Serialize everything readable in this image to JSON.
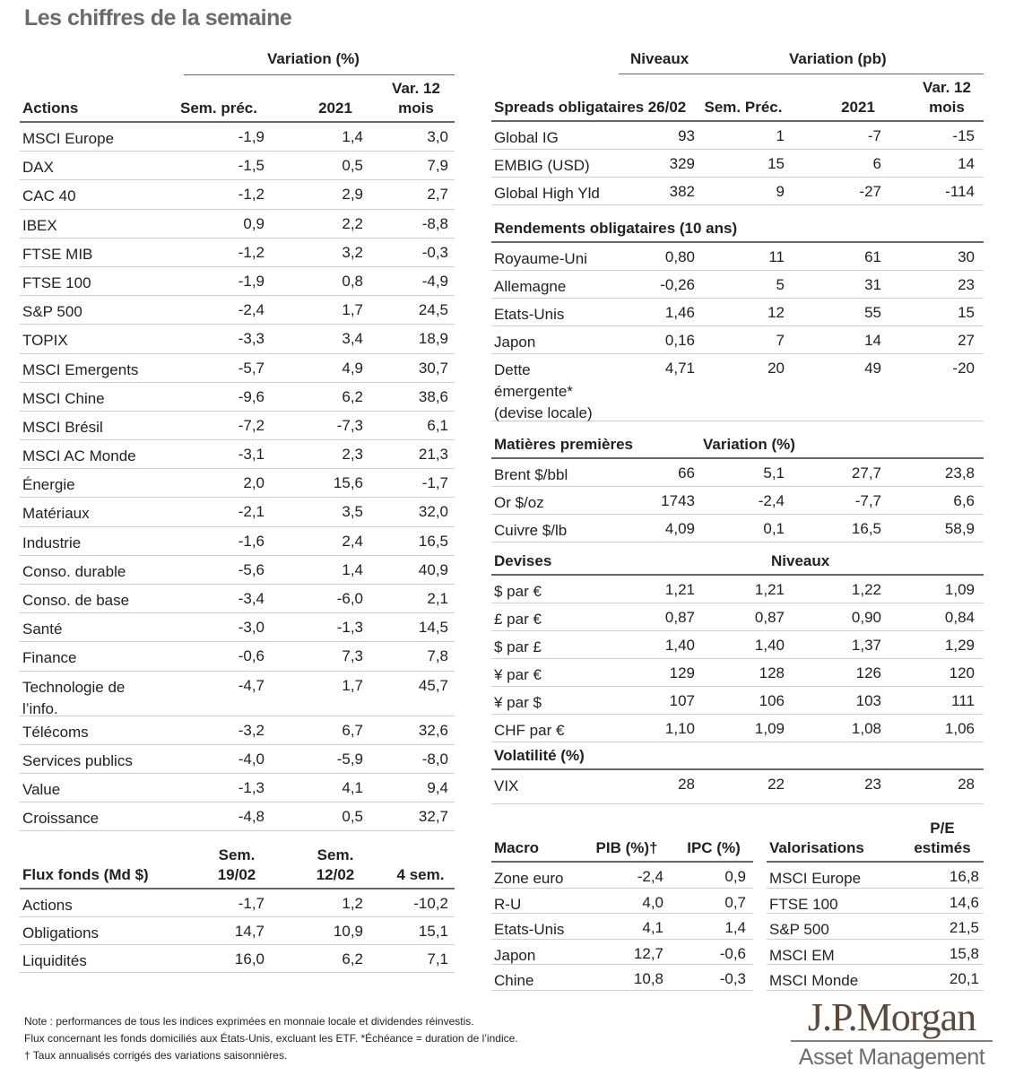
{
  "title": "Les chiffres de la semaine",
  "actions": {
    "group_header": "Variation (%)",
    "title": "Actions",
    "columns": [
      "Sem. préc.",
      "2021",
      "Var. 12 mois"
    ],
    "rows": [
      {
        "label": "MSCI Europe",
        "values": [
          "-1,9",
          "1,4",
          "3,0"
        ]
      },
      {
        "label": "DAX",
        "values": [
          "-1,5",
          "0,5",
          "7,9"
        ]
      },
      {
        "label": "CAC 40",
        "values": [
          "-1,2",
          "2,9",
          "2,7"
        ]
      },
      {
        "label": "IBEX",
        "values": [
          "0,9",
          "2,2",
          "-8,8"
        ]
      },
      {
        "label": "FTSE MIB",
        "values": [
          "-1,2",
          "3,2",
          "-0,3"
        ]
      },
      {
        "label": "FTSE 100",
        "values": [
          "-1,9",
          "0,8",
          "-4,9"
        ]
      },
      {
        "label": "S&P 500",
        "values": [
          "-2,4",
          "1,7",
          "24,5"
        ]
      },
      {
        "label": "TOPIX",
        "values": [
          "-3,3",
          "3,4",
          "18,9"
        ]
      },
      {
        "label": "MSCI Emergents",
        "values": [
          "-5,7",
          "4,9",
          "30,7"
        ]
      },
      {
        "label": "MSCI Chine",
        "values": [
          "-9,6",
          "6,2",
          "38,6"
        ]
      },
      {
        "label": "MSCI Brésil",
        "values": [
          "-7,2",
          "-7,3",
          "6,1"
        ]
      },
      {
        "label": "MSCI AC Monde",
        "values": [
          "-3,1",
          "2,3",
          "21,3"
        ]
      },
      {
        "label": " Énergie",
        "values": [
          "2,0",
          "15,6",
          "-1,7"
        ]
      },
      {
        "label": " Matériaux",
        "values": [
          "-2,1",
          "3,5",
          "32,0"
        ]
      },
      {
        "label": " Industrie",
        "values": [
          "-1,6",
          "2,4",
          "16,5"
        ]
      },
      {
        "label": " Conso. durable",
        "values": [
          "-5,6",
          "1,4",
          "40,9"
        ]
      },
      {
        "label": " Conso. de base",
        "values": [
          "-3,4",
          "-6,0",
          "2,1"
        ]
      },
      {
        "label": " Santé",
        "values": [
          "-3,0",
          "-1,3",
          "14,5"
        ]
      },
      {
        "label": " Finance",
        "values": [
          "-0,6",
          "7,3",
          "7,8"
        ]
      },
      {
        "label": " Technologie de\n l’info.",
        "values": [
          "-4,7",
          "1,7",
          "45,7"
        ]
      },
      {
        "label": " Télécoms",
        "values": [
          "-3,2",
          "6,7",
          "32,6"
        ]
      },
      {
        "label": " Services publics",
        "values": [
          "-4,0",
          "-5,9",
          "-8,0"
        ]
      },
      {
        "label": " Value",
        "values": [
          "-1,3",
          "4,1",
          "9,4"
        ]
      },
      {
        "label": " Croissance",
        "values": [
          "-4,8",
          "0,5",
          "32,7"
        ]
      }
    ]
  },
  "flux": {
    "title": "Flux fonds (Md $)",
    "columns": [
      "Sem. 19/02",
      "Sem. 12/02",
      "4 sem."
    ],
    "rows": [
      {
        "label": "Actions",
        "values": [
          "-1,7",
          "1,2",
          "-10,2"
        ]
      },
      {
        "label": "Obligations",
        "values": [
          "14,7",
          "10,9",
          "15,1"
        ]
      },
      {
        "label": "Liquidités",
        "values": [
          "16,0",
          "6,2",
          "7,1"
        ]
      }
    ]
  },
  "spreads": {
    "group_headers": [
      "Niveaux",
      "Variation (pb)"
    ],
    "title": "Spreads obligataires",
    "columns": [
      "26/02",
      "Sem. Préc.",
      "2021",
      "Var. 12 mois"
    ],
    "rows": [
      {
        "label": "Global IG",
        "values": [
          "93",
          "1",
          "-7",
          "-15"
        ]
      },
      {
        "label": "EMBIG (USD)",
        "values": [
          "329",
          "15",
          "6",
          "14"
        ]
      },
      {
        "label": "Global High Yld",
        "values": [
          "382",
          "9",
          "-27",
          "-114"
        ]
      }
    ]
  },
  "rendements": {
    "title": "Rendements obligataires (10 ans)",
    "rows": [
      {
        "label": "Royaume-Uni",
        "values": [
          "0,80",
          "11",
          "61",
          "30"
        ]
      },
      {
        "label": "Allemagne",
        "values": [
          "-0,26",
          "5",
          "31",
          "23"
        ]
      },
      {
        "label": "Etats-Unis",
        "values": [
          "1,46",
          "12",
          "55",
          "15"
        ]
      },
      {
        "label": "Japon",
        "values": [
          "0,16",
          "7",
          "14",
          "27"
        ]
      },
      {
        "label": "Dette\némergente*\n(devise locale)",
        "values": [
          "4,71",
          "20",
          "49",
          "-20"
        ]
      }
    ]
  },
  "matieres": {
    "title": "Matières premières",
    "header": "Variation (%)",
    "rows": [
      {
        "label": "Brent $/bbl",
        "values": [
          "66",
          "5,1",
          "27,7",
          "23,8"
        ]
      },
      {
        "label": "Or $/oz",
        "values": [
          "1743",
          "-2,4",
          "-7,7",
          "6,6"
        ]
      },
      {
        "label": "Cuivre $/lb",
        "values": [
          "4,09",
          "0,1",
          "16,5",
          "58,9"
        ]
      }
    ]
  },
  "devises": {
    "title": "Devises",
    "header": "Niveaux",
    "rows": [
      {
        "label": "$ par €",
        "values": [
          "1,21",
          "1,21",
          "1,22",
          "1,09"
        ]
      },
      {
        "label": "£ par €",
        "values": [
          "0,87",
          "0,87",
          "0,90",
          "0,84"
        ]
      },
      {
        "label": "$ par £",
        "values": [
          "1,40",
          "1,40",
          "1,37",
          "1,29"
        ]
      },
      {
        "label": "¥ par €",
        "values": [
          "129",
          "128",
          "126",
          "120"
        ]
      },
      {
        "label": "¥ par $",
        "values": [
          "107",
          "106",
          "103",
          "111"
        ]
      },
      {
        "label": "CHF par €",
        "values": [
          "1,10",
          "1,09",
          "1,08",
          "1,06"
        ]
      }
    ]
  },
  "volatilite": {
    "title": "Volatilité (%)",
    "rows": [
      {
        "label": "VIX",
        "values": [
          "28",
          "22",
          "23",
          "28"
        ]
      }
    ]
  },
  "macro": {
    "title": "Macro",
    "columns": [
      "PIB (%)†",
      "IPC (%)"
    ],
    "rows": [
      {
        "label": "Zone euro",
        "values": [
          "-2,4",
          "0,9"
        ]
      },
      {
        "label": "R-U",
        "values": [
          "4,0",
          "0,7"
        ]
      },
      {
        "label": "Etats-Unis",
        "values": [
          "4,1",
          "1,4"
        ]
      },
      {
        "label": "Japon",
        "values": [
          "12,7",
          "-0,6"
        ]
      },
      {
        "label": "Chine",
        "values": [
          "10,8",
          "-0,3"
        ]
      }
    ]
  },
  "valorisations": {
    "title": "Valorisations",
    "columns": [
      "P/E estimés"
    ],
    "rows": [
      {
        "label": "MSCI Europe",
        "values": [
          "16,8"
        ]
      },
      {
        "label": "FTSE 100",
        "values": [
          "14,6"
        ]
      },
      {
        "label": "S&P 500",
        "values": [
          "21,5"
        ]
      },
      {
        "label": "MSCI EM",
        "values": [
          "15,8"
        ]
      },
      {
        "label": "MSCI Monde",
        "values": [
          "20,1"
        ]
      }
    ]
  },
  "notes": [
    "Note : performances de tous les indices exprimées en monnaie locale et dividendes réinvestis.",
    "Flux concernant les fonds domiciliés aux États-Unis, excluant les ETF. *Échéance = duration de l’indice.",
    "† Taux annualisés corrigés des variations saisonnières."
  ],
  "logo": {
    "line1": "J.P.Morgan",
    "line2": "Asset Management"
  },
  "colors": {
    "title": "#6b6b6b",
    "rule": "#666666",
    "row_line": "#cfcfcf",
    "logo": "#5a4a3e"
  }
}
